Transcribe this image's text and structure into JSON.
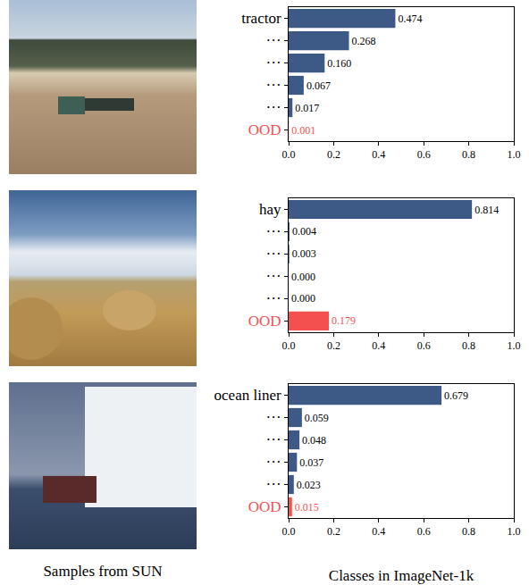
{
  "image_caption": "Samples from SUN",
  "chart_data": [
    {
      "type": "bar",
      "orientation": "horizontal",
      "categories": [
        "tractor",
        "···",
        "···",
        "···",
        "···",
        "OOD"
      ],
      "values": [
        0.474,
        0.268,
        0.16,
        0.067,
        0.017,
        0.001
      ],
      "value_labels": [
        "0.474",
        "0.268",
        "0.160",
        "0.067",
        "0.017",
        "0.001"
      ],
      "colors": [
        "#3d5a87",
        "#3d5a87",
        "#3d5a87",
        "#3d5a87",
        "#3d5a87",
        "#f55050"
      ],
      "xlim": [
        0,
        1
      ],
      "xticks": [
        {
          "value": 0,
          "label": "0.0"
        },
        {
          "value": 0.2,
          "label": "0.2"
        },
        {
          "value": 0.4,
          "label": "0.4"
        },
        {
          "value": 0.6,
          "label": "0.6"
        },
        {
          "value": 0.8,
          "label": "0.8"
        },
        {
          "value": 1,
          "label": "1.0"
        }
      ],
      "data_labels": true,
      "grid": false
    },
    {
      "type": "bar",
      "orientation": "horizontal",
      "categories": [
        "hay",
        "···",
        "···",
        "···",
        "···",
        "OOD"
      ],
      "values": [
        0.814,
        0.004,
        0.003,
        0.0,
        0.0,
        0.179
      ],
      "value_labels": [
        "0.814",
        "0.004",
        "0.003",
        "0.000",
        "0.000",
        "0.179"
      ],
      "colors": [
        "#3d5a87",
        "#3d5a87",
        "#3d5a87",
        "#3d5a87",
        "#3d5a87",
        "#f55050"
      ],
      "xlim": [
        0,
        1
      ],
      "xticks": [
        {
          "value": 0,
          "label": "0.0"
        },
        {
          "value": 0.2,
          "label": "0.2"
        },
        {
          "value": 0.4,
          "label": "0.4"
        },
        {
          "value": 0.6,
          "label": "0.6"
        },
        {
          "value": 0.8,
          "label": "0.8"
        },
        {
          "value": 1,
          "label": "1.0"
        }
      ],
      "data_labels": true,
      "grid": false
    },
    {
      "type": "bar",
      "orientation": "horizontal",
      "categories": [
        "ocean liner",
        "···",
        "···",
        "···",
        "···",
        "OOD"
      ],
      "values": [
        0.679,
        0.059,
        0.048,
        0.037,
        0.023,
        0.015
      ],
      "value_labels": [
        "0.679",
        "0.059",
        "0.048",
        "0.037",
        "0.023",
        "0.015"
      ],
      "colors": [
        "#3d5a87",
        "#3d5a87",
        "#3d5a87",
        "#3d5a87",
        "#3d5a87",
        "#f55050"
      ],
      "xlim": [
        0,
        1
      ],
      "xticks": [
        {
          "value": 0,
          "label": "0.0"
        },
        {
          "value": 0.2,
          "label": "0.2"
        },
        {
          "value": 0.4,
          "label": "0.4"
        },
        {
          "value": 0.6,
          "label": "0.6"
        },
        {
          "value": 0.8,
          "label": "0.8"
        },
        {
          "value": 1,
          "label": "1.0"
        }
      ],
      "x_label": "Classes in ImageNet-1k",
      "data_labels": true,
      "grid": false
    }
  ]
}
